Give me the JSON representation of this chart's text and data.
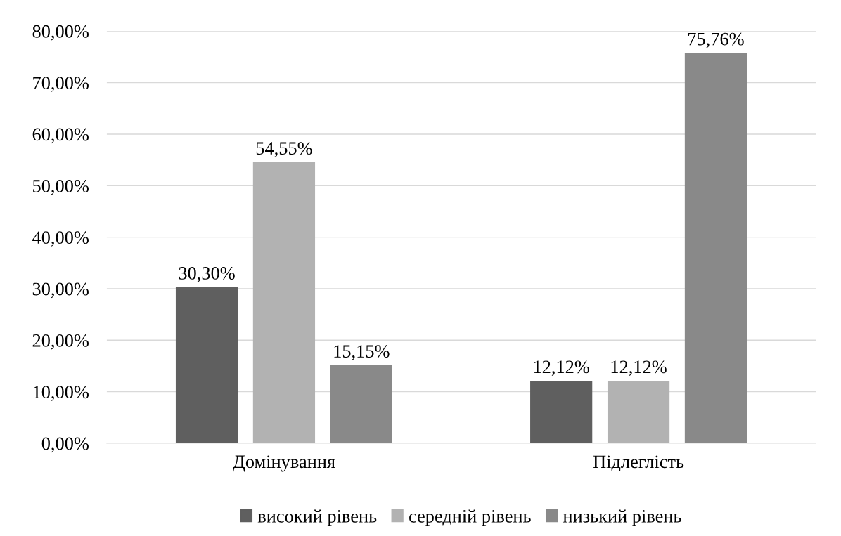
{
  "chart_data": {
    "type": "bar",
    "categories": [
      "Домінування",
      "Підлеглість"
    ],
    "series": [
      {
        "name": "високий рівень",
        "color": "#5f5f5f",
        "values": [
          30.3,
          12.12
        ],
        "value_labels": [
          "30,30%",
          "12,12%"
        ]
      },
      {
        "name": "середній рівень",
        "color": "#b2b2b2",
        "values": [
          54.55,
          12.12
        ],
        "value_labels": [
          "54,55%",
          "12,12%"
        ]
      },
      {
        "name": "низький рівень",
        "color": "#898989",
        "values": [
          15.15,
          75.76
        ],
        "value_labels": [
          "15,15%",
          "75,76%"
        ]
      }
    ],
    "ylim": [
      0,
      80
    ],
    "yticks": [
      {
        "value": 0,
        "label": "0,00%"
      },
      {
        "value": 10,
        "label": "10,00%"
      },
      {
        "value": 20,
        "label": "20,00%"
      },
      {
        "value": 30,
        "label": "30,00%"
      },
      {
        "value": 40,
        "label": "40,00%"
      },
      {
        "value": 50,
        "label": "50,00%"
      },
      {
        "value": 60,
        "label": "60,00%"
      },
      {
        "value": 70,
        "label": "70,00%"
      },
      {
        "value": 80,
        "label": "80,00%"
      }
    ],
    "grid": "y",
    "legend": "bottom"
  }
}
